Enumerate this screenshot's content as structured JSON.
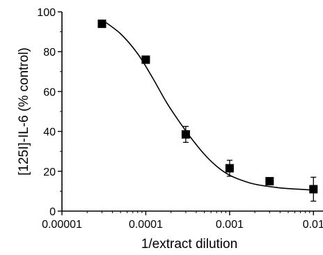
{
  "chart_data": {
    "type": "scatter",
    "title": "",
    "xlabel": "1/extract dilution",
    "ylabel": "[125I]-IL-6  (% control)",
    "xscale": "log",
    "xlim": [
      1e-05,
      0.013
    ],
    "ylim": [
      0,
      100
    ],
    "x_ticks": [
      1e-05,
      0.0001,
      0.001,
      0.01
    ],
    "x_tick_labels": [
      "0.00001",
      "0.0001",
      "0.001",
      "0.01"
    ],
    "y_ticks": [
      0,
      20,
      40,
      60,
      80,
      100
    ],
    "y_tick_labels": [
      "0",
      "20",
      "40",
      "60",
      "80",
      "100"
    ],
    "grid": false,
    "legend": "none",
    "series": [
      {
        "marker": "filled-square",
        "color": "#000000",
        "points": [
          {
            "x": 3e-05,
            "y": 94,
            "err": 1
          },
          {
            "x": 0.0001,
            "y": 76,
            "err": 1
          },
          {
            "x": 0.0003,
            "y": 38.5,
            "err": 4
          },
          {
            "x": 0.001,
            "y": 21.5,
            "err": 4
          },
          {
            "x": 0.003,
            "y": 15,
            "err": 1
          },
          {
            "x": 0.01,
            "y": 11,
            "err": 6
          }
        ]
      }
    ],
    "fit": {
      "type": "sigmoidal",
      "color": "#000000",
      "points": [
        {
          "x": 3e-05,
          "y": 96
        },
        {
          "x": 5e-05,
          "y": 89
        },
        {
          "x": 8e-05,
          "y": 79
        },
        {
          "x": 0.00012,
          "y": 67
        },
        {
          "x": 0.00018,
          "y": 54
        },
        {
          "x": 0.00025,
          "y": 45
        },
        {
          "x": 0.00035,
          "y": 36.5
        },
        {
          "x": 0.0005,
          "y": 28.5
        },
        {
          "x": 0.0007,
          "y": 22.5
        },
        {
          "x": 0.001,
          "y": 18
        },
        {
          "x": 0.0015,
          "y": 15
        },
        {
          "x": 0.002,
          "y": 13.5
        },
        {
          "x": 0.003,
          "y": 12.3
        },
        {
          "x": 0.005,
          "y": 11.3
        },
        {
          "x": 0.01,
          "y": 10.6
        }
      ]
    }
  }
}
